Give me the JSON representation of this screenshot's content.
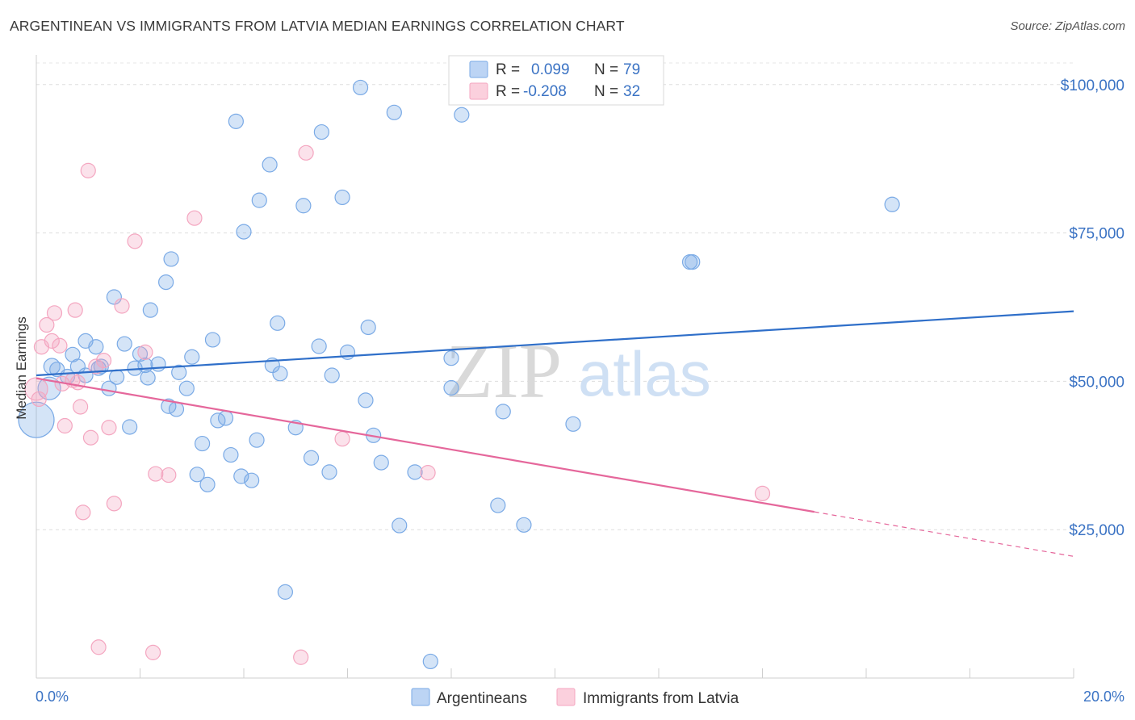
{
  "title": "ARGENTINEAN VS IMMIGRANTS FROM LATVIA MEDIAN EARNINGS CORRELATION CHART",
  "source": "Source: ZipAtlas.com",
  "watermark": {
    "zip": "ZIP",
    "atlas": "atlas"
  },
  "legend_top": {
    "rows": [
      {
        "r_label": "R =",
        "r_value": "0.099",
        "n_label": "N =",
        "n_value": "79"
      },
      {
        "r_label": "R =",
        "r_value": "-0.208",
        "n_label": "N =",
        "n_value": "32"
      }
    ]
  },
  "chart_data": {
    "type": "scatter",
    "ylabel": "Median Earnings",
    "xlim": [
      0,
      20
    ],
    "ylim": [
      0,
      105000
    ],
    "x_tick_labels": [
      "0.0%",
      "20.0%"
    ],
    "y_ticks": [
      {
        "value": 25000,
        "label": "$25,000"
      },
      {
        "value": 50000,
        "label": "$50,000"
      },
      {
        "value": 75000,
        "label": "$75,000"
      },
      {
        "value": 100000,
        "label": "$100,000"
      }
    ],
    "grid": true,
    "legend_position": "top-center",
    "series": [
      {
        "name": "Argentineans",
        "color": "#7aaae6",
        "line_color": "#2f6fc9",
        "trend": {
          "x": [
            0,
            20
          ],
          "y": [
            51000,
            61800
          ]
        },
        "points": [
          [
            0.0,
            43500,
            22
          ],
          [
            0.25,
            48800,
            14
          ],
          [
            0.3,
            52500,
            10
          ],
          [
            0.4,
            52000,
            9
          ],
          [
            0.6,
            50800,
            9
          ],
          [
            0.7,
            54500,
            9
          ],
          [
            0.8,
            52500,
            9
          ],
          [
            0.95,
            51000,
            9
          ],
          [
            0.95,
            56800,
            9
          ],
          [
            1.15,
            55800,
            9
          ],
          [
            1.2,
            52200,
            9
          ],
          [
            1.25,
            52500,
            9
          ],
          [
            1.4,
            48800,
            9
          ],
          [
            1.5,
            64200,
            9
          ],
          [
            1.55,
            50700,
            9
          ],
          [
            1.7,
            56300,
            9
          ],
          [
            1.8,
            42300,
            9
          ],
          [
            1.9,
            52200,
            9
          ],
          [
            2.0,
            54600,
            9
          ],
          [
            2.1,
            52700,
            9
          ],
          [
            2.15,
            50600,
            9
          ],
          [
            2.2,
            62000,
            9
          ],
          [
            2.35,
            52900,
            9
          ],
          [
            2.5,
            66700,
            9
          ],
          [
            2.55,
            45800,
            9
          ],
          [
            2.6,
            70600,
            9
          ],
          [
            2.7,
            45300,
            9
          ],
          [
            2.75,
            51500,
            9
          ],
          [
            2.9,
            48800,
            9
          ],
          [
            3.0,
            54100,
            9
          ],
          [
            3.2,
            39500,
            9
          ],
          [
            3.1,
            34300,
            9
          ],
          [
            3.3,
            32600,
            9
          ],
          [
            3.4,
            57000,
            9
          ],
          [
            3.5,
            43400,
            9
          ],
          [
            3.65,
            43800,
            9
          ],
          [
            3.75,
            37600,
            9
          ],
          [
            3.85,
            93800,
            9
          ],
          [
            3.95,
            34000,
            9
          ],
          [
            4.0,
            75200,
            9
          ],
          [
            4.15,
            33300,
            9
          ],
          [
            4.25,
            40100,
            9
          ],
          [
            4.3,
            80500,
            9
          ],
          [
            4.5,
            86500,
            9
          ],
          [
            4.55,
            52700,
            9
          ],
          [
            4.65,
            59800,
            9
          ],
          [
            4.7,
            51300,
            9
          ],
          [
            4.8,
            14500,
            9
          ],
          [
            5.0,
            42200,
            9
          ],
          [
            5.15,
            79600,
            9
          ],
          [
            5.3,
            37100,
            9
          ],
          [
            5.45,
            55900,
            9
          ],
          [
            5.5,
            92000,
            9
          ],
          [
            5.65,
            34700,
            9
          ],
          [
            5.7,
            51000,
            9
          ],
          [
            5.9,
            81000,
            9
          ],
          [
            6.0,
            54900,
            9
          ],
          [
            6.25,
            99500,
            9
          ],
          [
            6.35,
            46800,
            9
          ],
          [
            6.4,
            59100,
            9
          ],
          [
            6.5,
            40900,
            9
          ],
          [
            6.65,
            36300,
            9
          ],
          [
            6.9,
            95300,
            9
          ],
          [
            7.0,
            25700,
            9
          ],
          [
            7.3,
            34700,
            9
          ],
          [
            7.6,
            2800,
            9
          ],
          [
            8.0,
            53900,
            9
          ],
          [
            8.0,
            48900,
            9
          ],
          [
            8.2,
            94900,
            9
          ],
          [
            8.9,
            29100,
            9
          ],
          [
            9.0,
            44900,
            9
          ],
          [
            9.4,
            25800,
            9
          ],
          [
            10.35,
            42800,
            9
          ],
          [
            12.6,
            70100,
            9
          ],
          [
            12.65,
            70100,
            9
          ],
          [
            16.5,
            79800,
            9
          ]
        ]
      },
      {
        "name": "Immigrants from Latvia",
        "color": "#f4a6c0",
        "line_color": "#e5679b",
        "trend": {
          "x": [
            0,
            15
          ],
          "y": [
            50500,
            28000
          ]
        },
        "trend_dashed": {
          "x": [
            15,
            20
          ],
          "y": [
            28000,
            20500
          ]
        },
        "points": [
          [
            0.0,
            48700,
            14
          ],
          [
            0.05,
            47000,
            9
          ],
          [
            0.1,
            55800,
            9
          ],
          [
            0.2,
            59500,
            9
          ],
          [
            0.3,
            56800,
            9
          ],
          [
            0.35,
            61500,
            9
          ],
          [
            0.45,
            56000,
            9
          ],
          [
            0.5,
            49600,
            9
          ],
          [
            0.55,
            42500,
            9
          ],
          [
            0.7,
            50200,
            9
          ],
          [
            0.75,
            62000,
            9
          ],
          [
            0.8,
            49800,
            9
          ],
          [
            0.85,
            45700,
            9
          ],
          [
            0.9,
            27900,
            9
          ],
          [
            1.0,
            85500,
            9
          ],
          [
            1.05,
            40500,
            9
          ],
          [
            1.15,
            52500,
            9
          ],
          [
            1.2,
            5200,
            9
          ],
          [
            1.3,
            53500,
            9
          ],
          [
            1.4,
            42200,
            9
          ],
          [
            1.5,
            29400,
            9
          ],
          [
            1.65,
            62700,
            9
          ],
          [
            1.9,
            73600,
            9
          ],
          [
            2.1,
            54900,
            9
          ],
          [
            2.25,
            4300,
            9
          ],
          [
            2.3,
            34400,
            9
          ],
          [
            2.55,
            34200,
            9
          ],
          [
            3.05,
            77500,
            9
          ],
          [
            5.1,
            3500,
            9
          ],
          [
            5.2,
            88500,
            9
          ],
          [
            5.9,
            40300,
            9
          ],
          [
            7.55,
            34600,
            9
          ],
          [
            14.0,
            31100,
            9
          ]
        ]
      }
    ]
  }
}
